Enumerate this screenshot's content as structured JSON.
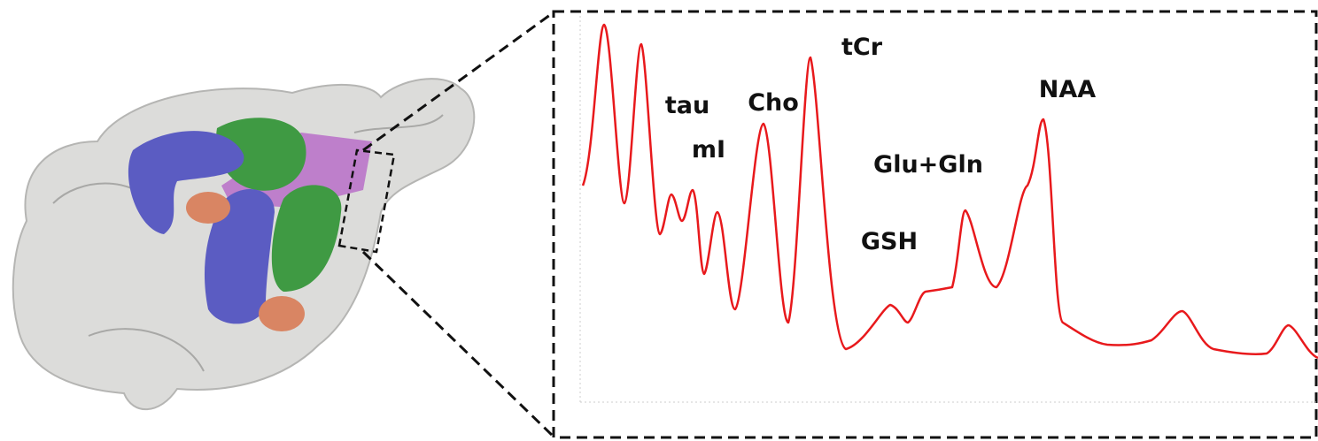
{
  "peak_labels": [
    "tau",
    "mI",
    "Cho",
    "tCr",
    "Glu+Gln",
    "GSH",
    "NAA"
  ]
}
